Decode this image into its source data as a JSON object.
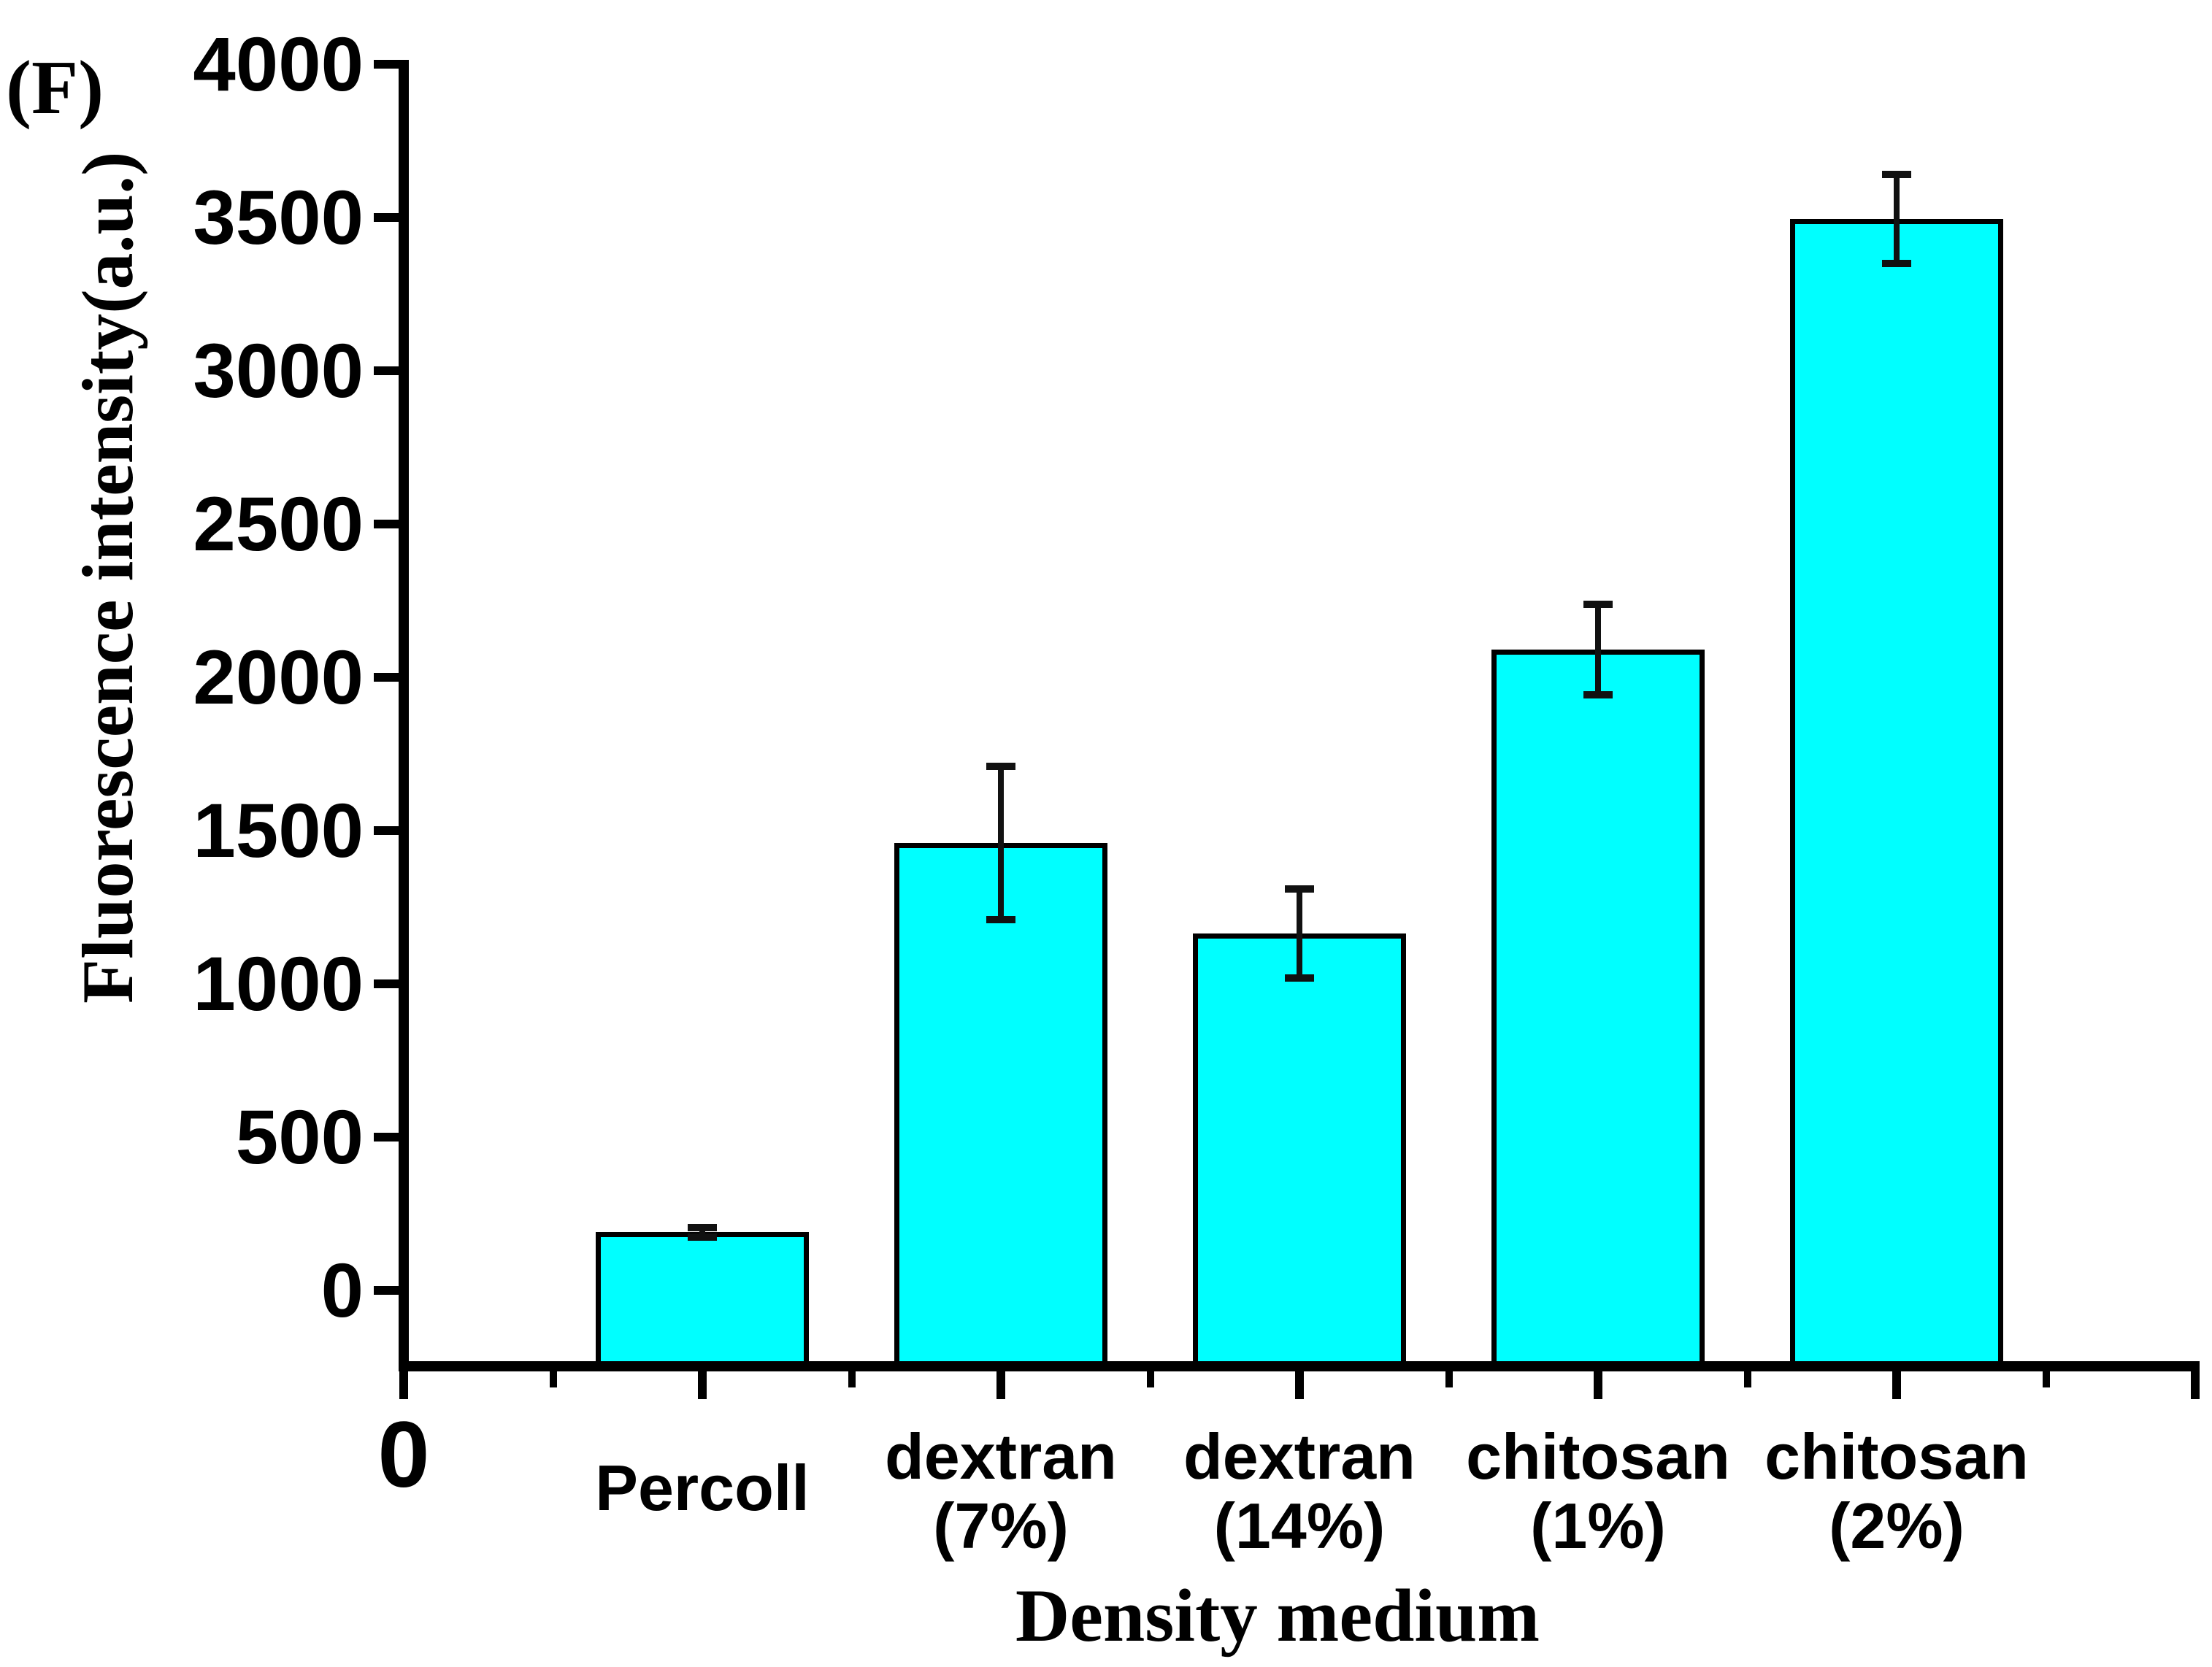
{
  "figure_label": "(F)",
  "chart_data": {
    "type": "bar",
    "title": "",
    "xlabel": "Density medium",
    "ylabel": "Fluorescence intensity(a.u.)",
    "categories": [
      "Percoll",
      "dextran (7%)",
      "dextran (14%)",
      "chitosan (1%)",
      "chitosan (2%)"
    ],
    "category_lines": [
      [
        "Percoll"
      ],
      [
        "dextran",
        "(7%)"
      ],
      [
        "dextran",
        "(14%)"
      ],
      [
        "chitosan",
        "(1%)"
      ],
      [
        "chitosan",
        "(2%)"
      ]
    ],
    "values": [
      190,
      1460,
      1165,
      2090,
      3495
    ],
    "errors": [
      15,
      250,
      145,
      148,
      146
    ],
    "y_ticks": [
      0,
      500,
      1000,
      1500,
      2000,
      2500,
      3000,
      3500,
      4000
    ],
    "y_minor_tick_step": 250,
    "x_origin_tick_label": "0",
    "ylim": [
      -250,
      4000
    ],
    "grid": false,
    "legend": null,
    "bar_color": "#00ffff",
    "bar_border_color": "#000000",
    "axis_color": "#000000",
    "error_bar_color": "#111111"
  }
}
